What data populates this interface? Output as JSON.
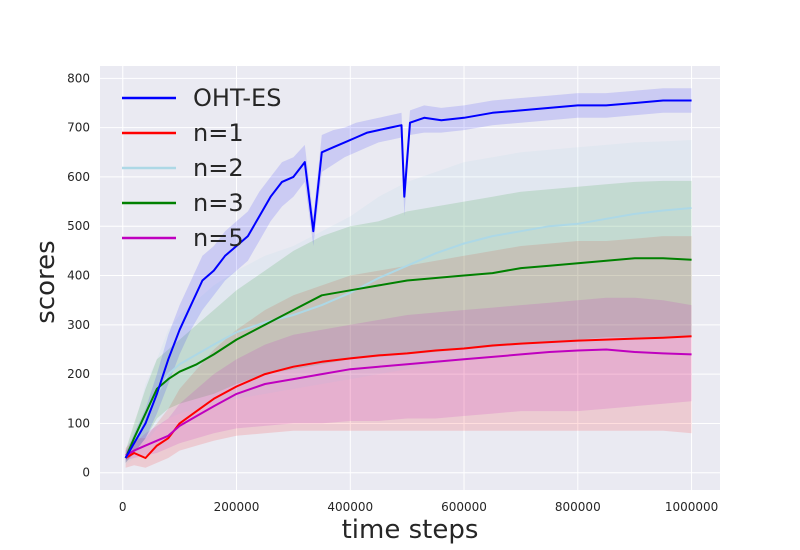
{
  "chart_data": {
    "type": "line",
    "title": "",
    "xlabel": "time steps",
    "ylabel": "scores",
    "xlim": [
      -40000,
      1050000
    ],
    "ylim": [
      -35,
      825
    ],
    "xticks": [
      0,
      200000,
      400000,
      600000,
      800000,
      1000000
    ],
    "xtick_labels": [
      "0",
      "200000",
      "400000",
      "600000",
      "800000",
      "1000000"
    ],
    "yticks": [
      0,
      100,
      200,
      300,
      400,
      500,
      600,
      700,
      800
    ],
    "ytick_labels": [
      "0",
      "100",
      "200",
      "300",
      "400",
      "500",
      "600",
      "700",
      "800"
    ],
    "grid": true,
    "background": "#eaeaf2",
    "legend_position": "top-left",
    "series": [
      {
        "name": "n=1",
        "color": "#ff0000",
        "x": [
          5000,
          20000,
          40000,
          60000,
          80000,
          100000,
          130000,
          160000,
          200000,
          250000,
          300000,
          350000,
          400000,
          450000,
          500000,
          550000,
          600000,
          650000,
          700000,
          750000,
          800000,
          850000,
          900000,
          950000,
          1000000
        ],
        "y": [
          30,
          40,
          30,
          55,
          70,
          100,
          125,
          150,
          175,
          200,
          215,
          225,
          232,
          238,
          242,
          248,
          252,
          258,
          262,
          265,
          268,
          270,
          272,
          274,
          277
        ],
        "band_lower": [
          10,
          15,
          10,
          20,
          30,
          45,
          55,
          65,
          75,
          80,
          85,
          85,
          85,
          85,
          85,
          85,
          85,
          85,
          85,
          85,
          85,
          85,
          85,
          85,
          80
        ],
        "band_upper": [
          50,
          70,
          70,
          100,
          130,
          170,
          210,
          250,
          290,
          330,
          360,
          380,
          400,
          410,
          420,
          430,
          440,
          450,
          460,
          465,
          470,
          470,
          475,
          480,
          480
        ]
      },
      {
        "name": "n=2",
        "color": "#add8e6",
        "x": [
          5000,
          20000,
          40000,
          60000,
          80000,
          100000,
          130000,
          160000,
          200000,
          250000,
          300000,
          350000,
          400000,
          450000,
          500000,
          550000,
          600000,
          650000,
          700000,
          750000,
          800000,
          850000,
          900000,
          950000,
          1000000
        ],
        "y": [
          30,
          60,
          120,
          160,
          200,
          220,
          240,
          260,
          285,
          305,
          320,
          340,
          365,
          395,
          420,
          445,
          465,
          480,
          490,
          500,
          505,
          515,
          525,
          532,
          537
        ],
        "band_lower": [
          15,
          30,
          60,
          90,
          110,
          120,
          130,
          140,
          150,
          160,
          170,
          180,
          190,
          200,
          210,
          220,
          230,
          240,
          250,
          255,
          260,
          265,
          270,
          275,
          280
        ],
        "band_upper": [
          45,
          90,
          180,
          230,
          290,
          320,
          350,
          380,
          410,
          440,
          460,
          490,
          520,
          560,
          590,
          610,
          630,
          640,
          650,
          655,
          660,
          665,
          670,
          672,
          675
        ]
      },
      {
        "name": "n=3",
        "color": "#008000",
        "x": [
          5000,
          20000,
          40000,
          60000,
          80000,
          100000,
          130000,
          160000,
          200000,
          250000,
          300000,
          350000,
          400000,
          450000,
          500000,
          550000,
          600000,
          650000,
          700000,
          750000,
          800000,
          850000,
          900000,
          950000,
          1000000
        ],
        "y": [
          30,
          70,
          120,
          170,
          190,
          205,
          220,
          240,
          270,
          300,
          330,
          360,
          370,
          380,
          390,
          395,
          400,
          405,
          415,
          420,
          425,
          430,
          435,
          435,
          432
        ],
        "band_lower": [
          20,
          40,
          70,
          110,
          130,
          140,
          150,
          160,
          180,
          200,
          210,
          220,
          230,
          235,
          240,
          245,
          250,
          255,
          260,
          265,
          270,
          275,
          275,
          275,
          275
        ],
        "band_upper": [
          45,
          100,
          170,
          230,
          250,
          270,
          300,
          330,
          370,
          410,
          450,
          480,
          500,
          510,
          530,
          540,
          550,
          560,
          570,
          575,
          580,
          585,
          590,
          592,
          592
        ]
      },
      {
        "name": "n=5",
        "color": "#bf00bf",
        "x": [
          5000,
          20000,
          40000,
          60000,
          80000,
          100000,
          130000,
          160000,
          200000,
          250000,
          300000,
          350000,
          400000,
          450000,
          500000,
          550000,
          600000,
          650000,
          700000,
          750000,
          800000,
          850000,
          900000,
          950000,
          1000000
        ],
        "y": [
          35,
          45,
          55,
          65,
          75,
          95,
          115,
          135,
          160,
          180,
          190,
          200,
          210,
          215,
          220,
          225,
          230,
          235,
          240,
          245,
          248,
          250,
          245,
          242,
          240
        ],
        "band_lower": [
          25,
          30,
          35,
          40,
          50,
          60,
          70,
          80,
          90,
          95,
          100,
          100,
          105,
          105,
          110,
          110,
          115,
          120,
          125,
          125,
          125,
          130,
          135,
          140,
          145
        ],
        "band_upper": [
          45,
          60,
          80,
          95,
          110,
          140,
          170,
          200,
          230,
          260,
          280,
          290,
          300,
          310,
          320,
          325,
          330,
          335,
          340,
          345,
          350,
          355,
          355,
          350,
          340
        ]
      },
      {
        "name": "OHT-ES",
        "color": "#0000ff",
        "x": [
          5000,
          20000,
          40000,
          60000,
          80000,
          100000,
          120000,
          140000,
          160000,
          180000,
          200000,
          220000,
          240000,
          260000,
          280000,
          300000,
          320000,
          335000,
          350000,
          370000,
          390000,
          410000,
          430000,
          450000,
          470000,
          490000,
          495000,
          505000,
          530000,
          560000,
          600000,
          650000,
          700000,
          750000,
          800000,
          850000,
          900000,
          950000,
          1000000
        ],
        "y": [
          30,
          60,
          100,
          160,
          230,
          290,
          340,
          390,
          410,
          440,
          460,
          480,
          520,
          560,
          590,
          600,
          630,
          490,
          650,
          660,
          670,
          680,
          690,
          695,
          700,
          705,
          560,
          710,
          720,
          715,
          720,
          730,
          735,
          740,
          745,
          745,
          750,
          755,
          755
        ],
        "band_lower": [
          20,
          40,
          70,
          120,
          180,
          240,
          290,
          330,
          360,
          390,
          410,
          430,
          470,
          510,
          540,
          560,
          590,
          460,
          610,
          625,
          640,
          650,
          660,
          670,
          675,
          680,
          520,
          685,
          690,
          690,
          695,
          705,
          710,
          715,
          720,
          720,
          725,
          730,
          730
        ],
        "band_upper": [
          40,
          80,
          130,
          200,
          280,
          340,
          390,
          440,
          460,
          490,
          510,
          530,
          570,
          600,
          630,
          640,
          665,
          520,
          685,
          695,
          700,
          710,
          715,
          720,
          725,
          730,
          600,
          735,
          745,
          740,
          745,
          755,
          760,
          765,
          770,
          770,
          775,
          780,
          780
        ]
      }
    ]
  },
  "legend": {
    "items": [
      {
        "label": "OHT-ES",
        "color": "#0000ff"
      },
      {
        "label": "n=1",
        "color": "#ff0000"
      },
      {
        "label": "n=2",
        "color": "#add8e6"
      },
      {
        "label": "n=3",
        "color": "#008000"
      },
      {
        "label": "n=5",
        "color": "#bf00bf"
      }
    ]
  }
}
